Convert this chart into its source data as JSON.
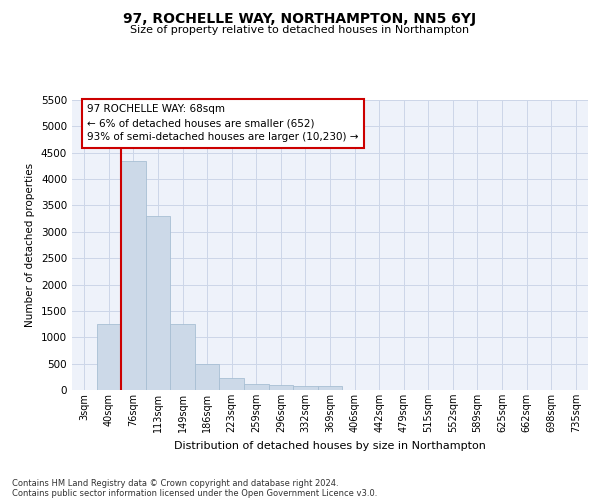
{
  "title": "97, ROCHELLE WAY, NORTHAMPTON, NN5 6YJ",
  "subtitle": "Size of property relative to detached houses in Northampton",
  "xlabel": "Distribution of detached houses by size in Northampton",
  "ylabel": "Number of detached properties",
  "footer1": "Contains HM Land Registry data © Crown copyright and database right 2024.",
  "footer2": "Contains public sector information licensed under the Open Government Licence v3.0.",
  "annotation_title": "97 ROCHELLE WAY: 68sqm",
  "annotation_line1": "← 6% of detached houses are smaller (652)",
  "annotation_line2": "93% of semi-detached houses are larger (10,230) →",
  "bar_color": "#ccd9e8",
  "bar_edge_color": "#a8bfd4",
  "vline_color": "#cc0000",
  "vline_x_index": 1,
  "annotation_box_color": "#ffffff",
  "annotation_box_edge": "#cc0000",
  "categories": [
    "3sqm",
    "40sqm",
    "76sqm",
    "113sqm",
    "149sqm",
    "186sqm",
    "223sqm",
    "259sqm",
    "296sqm",
    "332sqm",
    "369sqm",
    "406sqm",
    "442sqm",
    "479sqm",
    "515sqm",
    "552sqm",
    "589sqm",
    "625sqm",
    "662sqm",
    "698sqm",
    "735sqm"
  ],
  "values": [
    0,
    1250,
    4350,
    3300,
    1260,
    490,
    230,
    120,
    100,
    80,
    70,
    0,
    0,
    0,
    0,
    0,
    0,
    0,
    0,
    0,
    0
  ],
  "ylim": [
    0,
    5500
  ],
  "yticks": [
    0,
    500,
    1000,
    1500,
    2000,
    2500,
    3000,
    3500,
    4000,
    4500,
    5000,
    5500
  ],
  "grid_color": "#ccd6e8",
  "bg_color": "#eef2fa"
}
